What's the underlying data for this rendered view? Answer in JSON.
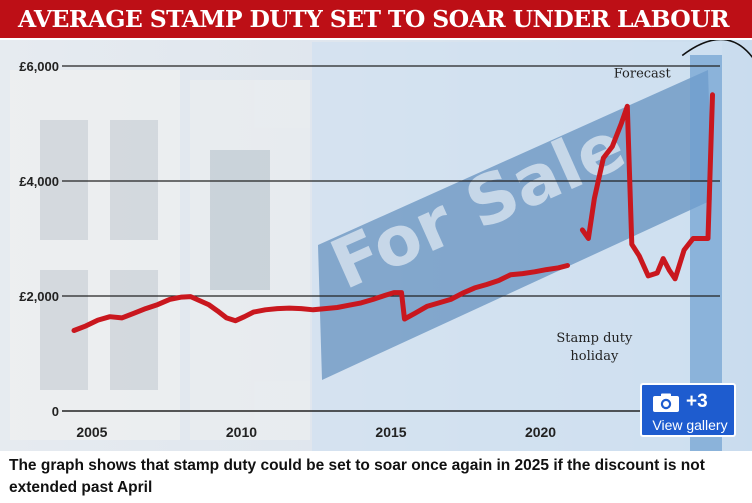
{
  "title": "AVERAGE STAMP DUTY SET TO SOAR UNDER LABOUR",
  "caption": "The graph shows that stamp duty could be set to soar once again in 2025 if the discount is not extended past April",
  "gallery": {
    "count": "+3",
    "label": "View gallery",
    "icon": "camera-icon"
  },
  "background_sign_text": "For Sale",
  "colors": {
    "title_bg": "#bd0f16",
    "line": "#c9171e",
    "gallery_button": "#1e5ccf",
    "axis": "#222222",
    "forecast_band": "#6f9fd0"
  },
  "chart_data": {
    "type": "line",
    "title": "AVERAGE STAMP DUTY SET TO SOAR UNDER LABOUR",
    "xlabel": "",
    "ylabel": "",
    "x_ticks": [
      "2005",
      "2010",
      "2015",
      "2020"
    ],
    "x_tick_values": [
      2005,
      2010,
      2015,
      2020
    ],
    "y_ticks": [
      "£6,000",
      "£4,000",
      "£2,000",
      "0"
    ],
    "y_tick_values": [
      6000,
      4000,
      2000,
      0
    ],
    "xlim": [
      2004,
      2026
    ],
    "ylim": [
      0,
      6000
    ],
    "grid": true,
    "annotations": [
      {
        "text": "Forecast",
        "x": 2023.4,
        "y": 5800
      },
      {
        "text": "Stamp duty holiday",
        "lines": [
          "Stamp duty",
          "holiday"
        ],
        "x": 2021.8,
        "y": 1200
      }
    ],
    "series": [
      {
        "segments": [
          [
            [
              2004.4,
              1400
            ],
            [
              2004.8,
              1480
            ],
            [
              2005.2,
              1580
            ],
            [
              2005.6,
              1640
            ],
            [
              2006.0,
              1620
            ],
            [
              2006.4,
              1700
            ],
            [
              2006.8,
              1780
            ],
            [
              2007.2,
              1850
            ],
            [
              2007.6,
              1940
            ],
            [
              2008.0,
              1980
            ],
            [
              2008.3,
              1990
            ],
            [
              2008.6,
              1920
            ],
            [
              2008.9,
              1850
            ],
            [
              2009.2,
              1740
            ],
            [
              2009.5,
              1620
            ],
            [
              2009.8,
              1570
            ],
            [
              2010.1,
              1640
            ],
            [
              2010.4,
              1720
            ],
            [
              2010.8,
              1760
            ],
            [
              2011.2,
              1780
            ],
            [
              2011.6,
              1790
            ],
            [
              2012.0,
              1780
            ],
            [
              2012.4,
              1760
            ],
            [
              2012.8,
              1780
            ],
            [
              2013.2,
              1800
            ],
            [
              2013.6,
              1840
            ],
            [
              2014.0,
              1880
            ],
            [
              2014.4,
              1940
            ],
            [
              2014.8,
              2010
            ],
            [
              2015.1,
              2060
            ],
            [
              2015.35,
              2060
            ],
            [
              2015.45,
              1600
            ],
            [
              2015.8,
              1700
            ],
            [
              2016.2,
              1820
            ],
            [
              2016.6,
              1880
            ],
            [
              2017.0,
              1940
            ],
            [
              2017.4,
              2050
            ],
            [
              2017.8,
              2140
            ],
            [
              2018.2,
              2200
            ],
            [
              2018.6,
              2270
            ],
            [
              2019.0,
              2370
            ],
            [
              2019.4,
              2390
            ],
            [
              2019.8,
              2420
            ],
            [
              2020.2,
              2460
            ],
            [
              2020.6,
              2490
            ],
            [
              2020.9,
              2530
            ]
          ],
          [
            [
              2021.4,
              3150
            ],
            [
              2021.6,
              3000
            ],
            [
              2021.8,
              3700
            ],
            [
              2022.1,
              4400
            ],
            [
              2022.4,
              4600
            ],
            [
              2022.7,
              5000
            ],
            [
              2022.9,
              5300
            ],
            [
              2023.05,
              2900
            ],
            [
              2023.3,
              2700
            ],
            [
              2023.6,
              2350
            ],
            [
              2023.9,
              2400
            ],
            [
              2024.1,
              2650
            ],
            [
              2024.3,
              2450
            ],
            [
              2024.5,
              2300
            ],
            [
              2024.8,
              2800
            ],
            [
              2025.1,
              3000
            ],
            [
              2025.4,
              3000
            ],
            [
              2025.6,
              3000
            ],
            [
              2025.75,
              5500
            ]
          ]
        ]
      }
    ]
  }
}
